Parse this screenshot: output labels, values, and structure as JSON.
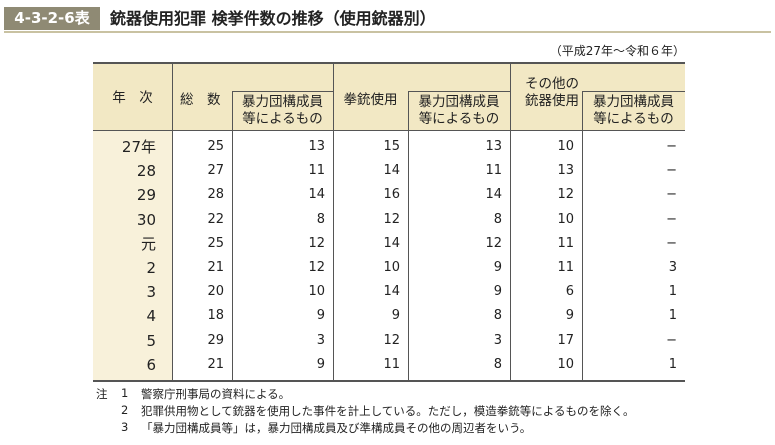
{
  "header": {
    "id": "4-3-2-6表",
    "title": "銃器使用犯罪 検挙件数の推移（使用銃器別）",
    "period": "（平成27年～令和６年）"
  },
  "table": {
    "columns": [
      "年　次",
      "総　数",
      "暴力団構成員等によるもの",
      "拳銃使用",
      "暴力団構成員等によるもの",
      "その他の銃器使用",
      "暴力団構成員等によるもの"
    ],
    "rows": [
      [
        "27年",
        25,
        13,
        15,
        13,
        10,
        "−"
      ],
      [
        "28",
        27,
        11,
        14,
        11,
        13,
        "−"
      ],
      [
        "29",
        28,
        14,
        16,
        14,
        12,
        "−"
      ],
      [
        "30",
        22,
        8,
        12,
        8,
        10,
        "−"
      ],
      [
        "元",
        25,
        12,
        14,
        12,
        11,
        "−"
      ],
      [
        "2",
        21,
        12,
        10,
        9,
        11,
        3
      ],
      [
        "3",
        20,
        10,
        14,
        9,
        6,
        1
      ],
      [
        "4",
        18,
        9,
        9,
        8,
        9,
        1
      ],
      [
        "5",
        29,
        3,
        12,
        3,
        17,
        "−"
      ],
      [
        "6",
        21,
        9,
        11,
        8,
        10,
        1
      ]
    ]
  },
  "notes": {
    "label": "注",
    "items": [
      {
        "num": "1",
        "text": "警察庁刑事局の資料による。"
      },
      {
        "num": "2",
        "text": "犯罪供用物として銃器を使用した事件を計上している。ただし，模造拳銃等によるものを除く。"
      },
      {
        "num": "3",
        "text": "「暴力団構成員等」は，暴力団構成員及び準構成員その他の周辺者をいう。"
      }
    ]
  }
}
